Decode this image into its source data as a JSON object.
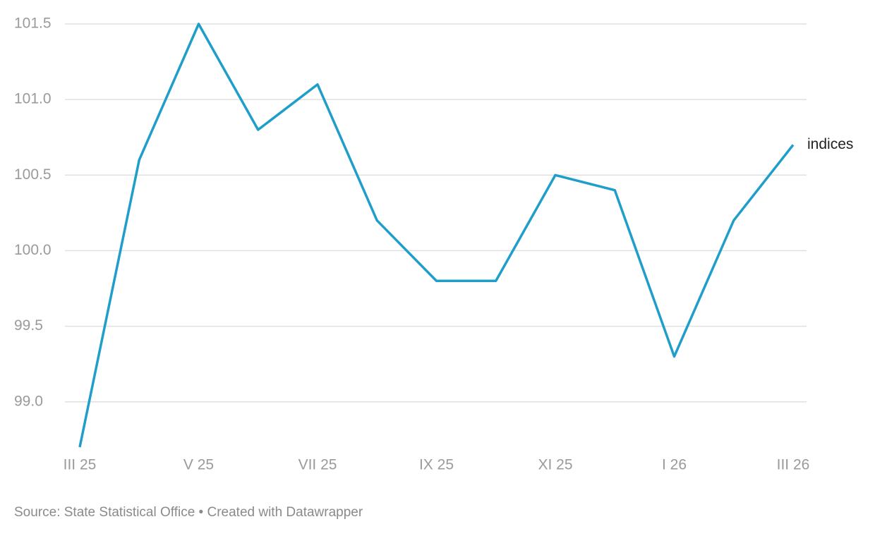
{
  "chart_data": {
    "type": "line",
    "categories": [
      "III 25",
      null,
      "V 25",
      null,
      "VII 25",
      null,
      "IX 25",
      null,
      "XI 25",
      null,
      "I 26",
      null,
      "III 26"
    ],
    "series": [
      {
        "name": "indices",
        "color": "#1f9ec9",
        "values": [
          98.7,
          100.6,
          101.5,
          100.8,
          101.1,
          100.2,
          99.8,
          99.8,
          100.5,
          100.4,
          99.3,
          100.2,
          100.7
        ]
      }
    ],
    "ylim": [
      98.7,
      101.5
    ],
    "yticks": [
      {
        "value": 99,
        "label": "99.0"
      },
      99.5,
      {
        "value": 100,
        "label": "100.0"
      },
      100.5,
      {
        "value": 101,
        "label": "101.0"
      },
      101.5
    ],
    "grid": true,
    "source": "Source: State Statistical Office • Created with Datawrapper"
  }
}
